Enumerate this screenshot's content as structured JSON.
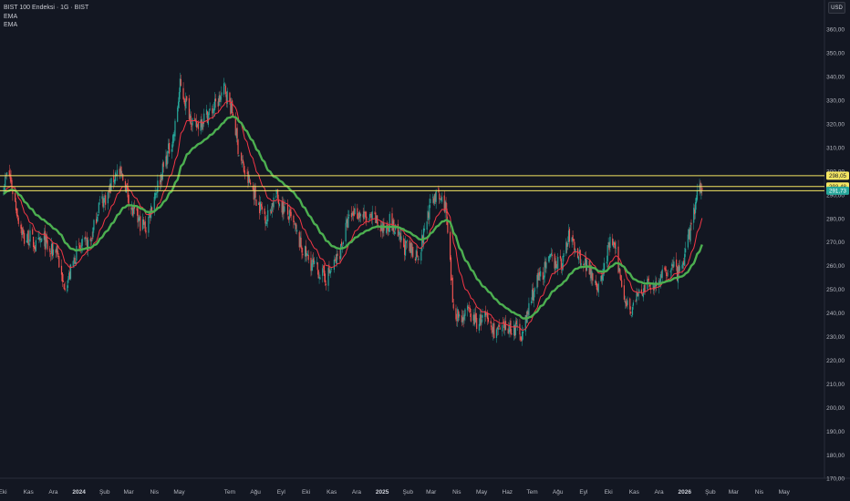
{
  "header": {
    "title": "BIST 100 Endeksi · 1G · BIST",
    "indicators": [
      "EMA",
      "EMA"
    ],
    "currency": "USD"
  },
  "colors": {
    "background": "#131722",
    "grid": "#1f232e",
    "up_candle": "#26a69a",
    "down_candle": "#ef5350",
    "ema_fast": "#f23645",
    "ema_slow": "#4caf50",
    "level_line": "#f5e663",
    "price_label": "#26a69a"
  },
  "chart_data": {
    "type": "candlestick",
    "title": "BIST 100 Endeksi · 1G · BIST",
    "ylim": [
      162,
      367
    ],
    "y_ticks": [
      170,
      180,
      190,
      200,
      210,
      220,
      230,
      240,
      250,
      260,
      270,
      280,
      290,
      300,
      310,
      320,
      330,
      340,
      350,
      360
    ],
    "y_tick_labels": [
      "170,00",
      "180,00",
      "190,00",
      "200,00",
      "210,00",
      "220,00",
      "230,00",
      "240,00",
      "250,00",
      "260,00",
      "270,00",
      "280,00",
      "290,00",
      "300,00",
      "310,00",
      "320,00",
      "330,00",
      "340,00",
      "350,00",
      "360,00"
    ],
    "x_range": [
      "2023-10-01",
      "2026-05-31"
    ],
    "x_ticks": [
      {
        "date": "2023-10-01",
        "label": "Eki"
      },
      {
        "date": "2023-11-01",
        "label": "Kas"
      },
      {
        "date": "2023-12-01",
        "label": "Ara"
      },
      {
        "date": "2024-01-01",
        "label": "2024"
      },
      {
        "date": "2024-02-01",
        "label": "Şub"
      },
      {
        "date": "2024-03-01",
        "label": "Mar"
      },
      {
        "date": "2024-04-01",
        "label": "Nis"
      },
      {
        "date": "2024-05-01",
        "label": "May"
      },
      {
        "date": "2024-07-01",
        "label": "Tem"
      },
      {
        "date": "2024-08-01",
        "label": "Ağu"
      },
      {
        "date": "2024-09-01",
        "label": "Eyl"
      },
      {
        "date": "2024-10-01",
        "label": "Eki"
      },
      {
        "date": "2024-11-01",
        "label": "Kas"
      },
      {
        "date": "2024-12-01",
        "label": "Ara"
      },
      {
        "date": "2025-01-01",
        "label": "2025"
      },
      {
        "date": "2025-02-01",
        "label": "Şub"
      },
      {
        "date": "2025-03-01",
        "label": "Mar"
      },
      {
        "date": "2025-04-01",
        "label": "Nis"
      },
      {
        "date": "2025-05-01",
        "label": "May"
      },
      {
        "date": "2025-06-01",
        "label": "Haz"
      },
      {
        "date": "2025-07-01",
        "label": "Tem"
      },
      {
        "date": "2025-08-01",
        "label": "Ağu"
      },
      {
        "date": "2025-09-01",
        "label": "Eyl"
      },
      {
        "date": "2025-10-01",
        "label": "Eki"
      },
      {
        "date": "2025-11-01",
        "label": "Kas"
      },
      {
        "date": "2025-12-01",
        "label": "Ara"
      },
      {
        "date": "2026-01-01",
        "label": "2026"
      },
      {
        "date": "2026-02-01",
        "label": "Şub"
      },
      {
        "date": "2026-03-01",
        "label": "Mar"
      },
      {
        "date": "2026-04-01",
        "label": "Nis"
      },
      {
        "date": "2026-05-01",
        "label": "May"
      }
    ],
    "price_path": [
      [
        "2023-10-01",
        293
      ],
      [
        "2023-10-08",
        300
      ],
      [
        "2023-10-14",
        290
      ],
      [
        "2023-10-20",
        280
      ],
      [
        "2023-10-27",
        271
      ],
      [
        "2023-11-03",
        272
      ],
      [
        "2023-11-10",
        268
      ],
      [
        "2023-11-20",
        271
      ],
      [
        "2023-11-27",
        265
      ],
      [
        "2023-12-05",
        268
      ],
      [
        "2023-12-12",
        252
      ],
      [
        "2023-12-20",
        255
      ],
      [
        "2023-12-28",
        265
      ],
      [
        "2024-01-05",
        268
      ],
      [
        "2024-01-15",
        270
      ],
      [
        "2024-01-25",
        286
      ],
      [
        "2024-02-05",
        290
      ],
      [
        "2024-02-15",
        300
      ],
      [
        "2024-02-25",
        296
      ],
      [
        "2024-03-05",
        283
      ],
      [
        "2024-03-15",
        278
      ],
      [
        "2024-03-22",
        276
      ],
      [
        "2024-04-01",
        290
      ],
      [
        "2024-04-08",
        297
      ],
      [
        "2024-04-15",
        305
      ],
      [
        "2024-04-25",
        316
      ],
      [
        "2024-05-02",
        336
      ],
      [
        "2024-05-10",
        328
      ],
      [
        "2024-05-20",
        318
      ],
      [
        "2024-05-28",
        322
      ],
      [
        "2024-06-08",
        325
      ],
      [
        "2024-06-18",
        330
      ],
      [
        "2024-06-25",
        335
      ],
      [
        "2024-07-05",
        324
      ],
      [
        "2024-07-12",
        308
      ],
      [
        "2024-07-20",
        298
      ],
      [
        "2024-07-28",
        293
      ],
      [
        "2024-08-05",
        286
      ],
      [
        "2024-08-15",
        280
      ],
      [
        "2024-08-25",
        290
      ],
      [
        "2024-09-05",
        284
      ],
      [
        "2024-09-15",
        278
      ],
      [
        "2024-09-25",
        268
      ],
      [
        "2024-10-05",
        262
      ],
      [
        "2024-10-15",
        258
      ],
      [
        "2024-10-25",
        255
      ],
      [
        "2024-11-02",
        259
      ],
      [
        "2024-11-10",
        265
      ],
      [
        "2024-11-20",
        278
      ],
      [
        "2024-11-28",
        283
      ],
      [
        "2024-12-05",
        282
      ],
      [
        "2024-12-15",
        279
      ],
      [
        "2024-12-22",
        280
      ],
      [
        "2025-01-02",
        275
      ],
      [
        "2025-01-10",
        279
      ],
      [
        "2025-01-20",
        272
      ],
      [
        "2025-01-28",
        268
      ],
      [
        "2025-02-05",
        266
      ],
      [
        "2025-02-15",
        265
      ],
      [
        "2025-02-25",
        282
      ],
      [
        "2025-03-05",
        290
      ],
      [
        "2025-03-18",
        286
      ],
      [
        "2025-03-22",
        268
      ],
      [
        "2025-03-28",
        242
      ],
      [
        "2025-04-05",
        238
      ],
      [
        "2025-04-15",
        240
      ],
      [
        "2025-04-25",
        236
      ],
      [
        "2025-05-05",
        238
      ],
      [
        "2025-05-15",
        233
      ],
      [
        "2025-05-25",
        232
      ],
      [
        "2025-06-03",
        234
      ],
      [
        "2025-06-12",
        233
      ],
      [
        "2025-06-20",
        231
      ],
      [
        "2025-06-28",
        244
      ],
      [
        "2025-07-05",
        252
      ],
      [
        "2025-07-15",
        258
      ],
      [
        "2025-07-25",
        263
      ],
      [
        "2025-08-05",
        260
      ],
      [
        "2025-08-15",
        273
      ],
      [
        "2025-08-22",
        267
      ],
      [
        "2025-09-01",
        262
      ],
      [
        "2025-09-10",
        258
      ],
      [
        "2025-09-20",
        250
      ],
      [
        "2025-09-28",
        263
      ],
      [
        "2025-10-05",
        272
      ],
      [
        "2025-10-12",
        261
      ],
      [
        "2025-10-20",
        248
      ],
      [
        "2025-10-28",
        241
      ],
      [
        "2025-11-05",
        247
      ],
      [
        "2025-11-15",
        251
      ],
      [
        "2025-11-25",
        252
      ],
      [
        "2025-12-05",
        255
      ],
      [
        "2025-12-15",
        260
      ],
      [
        "2025-12-25",
        256
      ],
      [
        "2026-01-03",
        266
      ],
      [
        "2026-01-10",
        280
      ],
      [
        "2026-01-18",
        292
      ],
      [
        "2026-01-22",
        291.73
      ]
    ],
    "series": [
      {
        "name": "EMA",
        "role": "fast",
        "period": 20
      },
      {
        "name": "EMA",
        "role": "slow",
        "period": 50
      }
    ],
    "horizontal_levels": [
      {
        "value": 298.05,
        "label": "298,05"
      },
      {
        "value": 293.48,
        "label": "293,48"
      },
      {
        "value": 291.73,
        "label": "291,73",
        "current": true
      }
    ],
    "grid": false,
    "current_price": 291.73
  }
}
